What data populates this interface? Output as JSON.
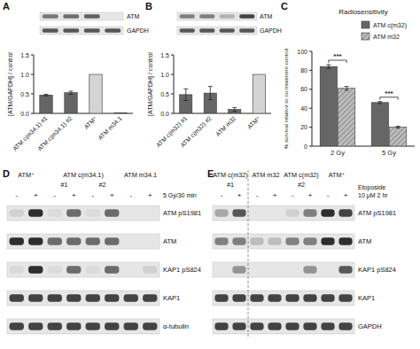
{
  "panels": [
    "A",
    "B",
    "C",
    "D",
    "E"
  ],
  "chart_data": [
    {
      "type": "bar",
      "y_label": "[ATM/GAPDH] / control",
      "categories": [
        "ATM c(m34.1) #1",
        "ATM c(m34.1) #2",
        "ATM⁺",
        "ATM m34.1"
      ],
      "values": [
        0.47,
        0.53,
        1.0,
        0.01
      ],
      "errors": [
        0.02,
        0.04,
        null,
        null
      ],
      "colors": [
        "#666666",
        "#666666",
        "#d4d4d4",
        "#666666"
      ],
      "ylim": [
        0,
        1.5
      ],
      "yticks": [
        {
          "value": 0,
          "label": "0.0"
        },
        {
          "value": 0.5,
          "label": "0.5"
        },
        {
          "value": 1,
          "label": "1.0"
        },
        {
          "value": 1.5,
          "label": "1.5"
        }
      ]
    },
    {
      "type": "bar",
      "y_label": "[ATM/GAPDH] / control",
      "categories": [
        "ATM c(m32) #1",
        "ATM c(m32) #2",
        "ATM m32",
        "ATM⁺"
      ],
      "values": [
        0.48,
        0.52,
        0.1,
        1.0
      ],
      "errors": [
        0.15,
        0.17,
        0.05,
        null
      ],
      "colors": [
        "#666666",
        "#666666",
        "#666666",
        "#d4d4d4"
      ],
      "ylim": [
        0,
        1.5
      ],
      "yticks": [
        {
          "value": 0,
          "label": "0.0"
        },
        {
          "value": 0.5,
          "label": "0.5"
        },
        {
          "value": 1,
          "label": "1.0"
        },
        {
          "value": 1.5,
          "label": "1.5"
        }
      ]
    },
    {
      "type": "bar",
      "title": "Radiosensitivity",
      "y_label": "% survival relative to no treatment control",
      "categories": [
        "2 Gy",
        "5 Gy"
      ],
      "series": [
        {
          "name": "ATM c(m32)",
          "color": "#666666",
          "values": [
            84,
            46
          ],
          "errors": [
            2,
            1
          ]
        },
        {
          "name": "ATM m32",
          "color": "#bdbdbd",
          "values": [
            61,
            20
          ],
          "errors": [
            2,
            1
          ]
        }
      ],
      "annotations": [
        "***",
        "***"
      ],
      "ylim": [
        0,
        100
      ],
      "yticks": [
        0,
        20,
        40,
        60,
        80,
        100
      ],
      "legend": "top-right"
    }
  ],
  "blots": [
    {
      "rows": [
        {
          "label": "ATM",
          "bands": [
            0.55,
            0.6,
            0.65,
            0.0
          ]
        },
        {
          "label": "GAPDH",
          "bands": [
            0.7,
            0.7,
            0.7,
            0.7
          ]
        }
      ]
    },
    {
      "rows": [
        {
          "label": "ATM",
          "bands": [
            0.5,
            0.5,
            0.25,
            0.8
          ]
        },
        {
          "label": "GAPDH",
          "bands": [
            0.7,
            0.7,
            0.7,
            0.7
          ]
        }
      ]
    },
    {
      "groups": [
        {
          "label": "ATM⁺",
          "lanes": 2
        },
        {
          "label": "ATM c(m34.1)",
          "lanes": 4,
          "sub": [
            "#1",
            "#2"
          ]
        },
        {
          "label": "ATM m34.1",
          "lanes": 2
        }
      ],
      "treatment": [
        "5 Gy/30 min"
      ],
      "signs": [
        "-",
        "+",
        "-",
        "+",
        "-",
        "+",
        "-",
        "+"
      ],
      "rows": [
        {
          "label": "ATM pS1981",
          "bands": [
            0.1,
            0.9,
            0.05,
            0.6,
            0.05,
            0.6,
            0.0,
            0.0
          ]
        },
        {
          "label": "ATM",
          "bands": [
            0.9,
            0.9,
            0.6,
            0.6,
            0.6,
            0.6,
            0.0,
            0.0
          ]
        },
        {
          "label": "KAP1 pS824",
          "bands": [
            0.05,
            0.9,
            0.05,
            0.6,
            0.05,
            0.6,
            0.0,
            0.1
          ]
        },
        {
          "label": "KAP1",
          "bands": [
            0.8,
            0.8,
            0.8,
            0.8,
            0.8,
            0.8,
            0.8,
            0.8
          ]
        },
        {
          "label": "α-tubulin",
          "bands": [
            0.8,
            0.8,
            0.8,
            0.8,
            0.8,
            0.8,
            0.8,
            0.8
          ]
        }
      ]
    },
    {
      "groups": [
        {
          "label": "ATM c(m32)",
          "lanes": 2,
          "sub": [
            "#1"
          ]
        },
        {
          "label": "ATM m32",
          "lanes": 2
        },
        {
          "label": "ATM c(m32)",
          "lanes": 2,
          "sub": [
            "#2"
          ]
        },
        {
          "label": "ATM⁺",
          "lanes": 2
        }
      ],
      "treatment": [
        "Etoposide",
        "10 μM 2 hr"
      ],
      "signs": [
        "-",
        "+",
        "-",
        "+",
        "-",
        "+",
        "-",
        "+"
      ],
      "divider_after": 2,
      "rows": [
        {
          "label": "ATM pS1981",
          "bands": [
            0.3,
            0.7,
            0.0,
            0.0,
            0.1,
            0.5,
            0.9,
            0.8
          ]
        },
        {
          "label": "ATM",
          "bands": [
            0.5,
            0.5,
            0.2,
            0.2,
            0.5,
            0.5,
            0.9,
            0.9
          ]
        },
        {
          "label": "KAP1 pS824",
          "bands": [
            0.0,
            0.4,
            0.0,
            0.0,
            0.0,
            0.4,
            0.0,
            0.7
          ]
        },
        {
          "label": "KAP1",
          "bands": [
            0.8,
            0.8,
            0.8,
            0.8,
            0.8,
            0.8,
            0.8,
            0.8
          ]
        },
        {
          "label": "GAPDH",
          "bands": [
            0.8,
            0.8,
            0.8,
            0.8,
            0.8,
            0.8,
            0.8,
            0.8
          ]
        }
      ]
    }
  ]
}
